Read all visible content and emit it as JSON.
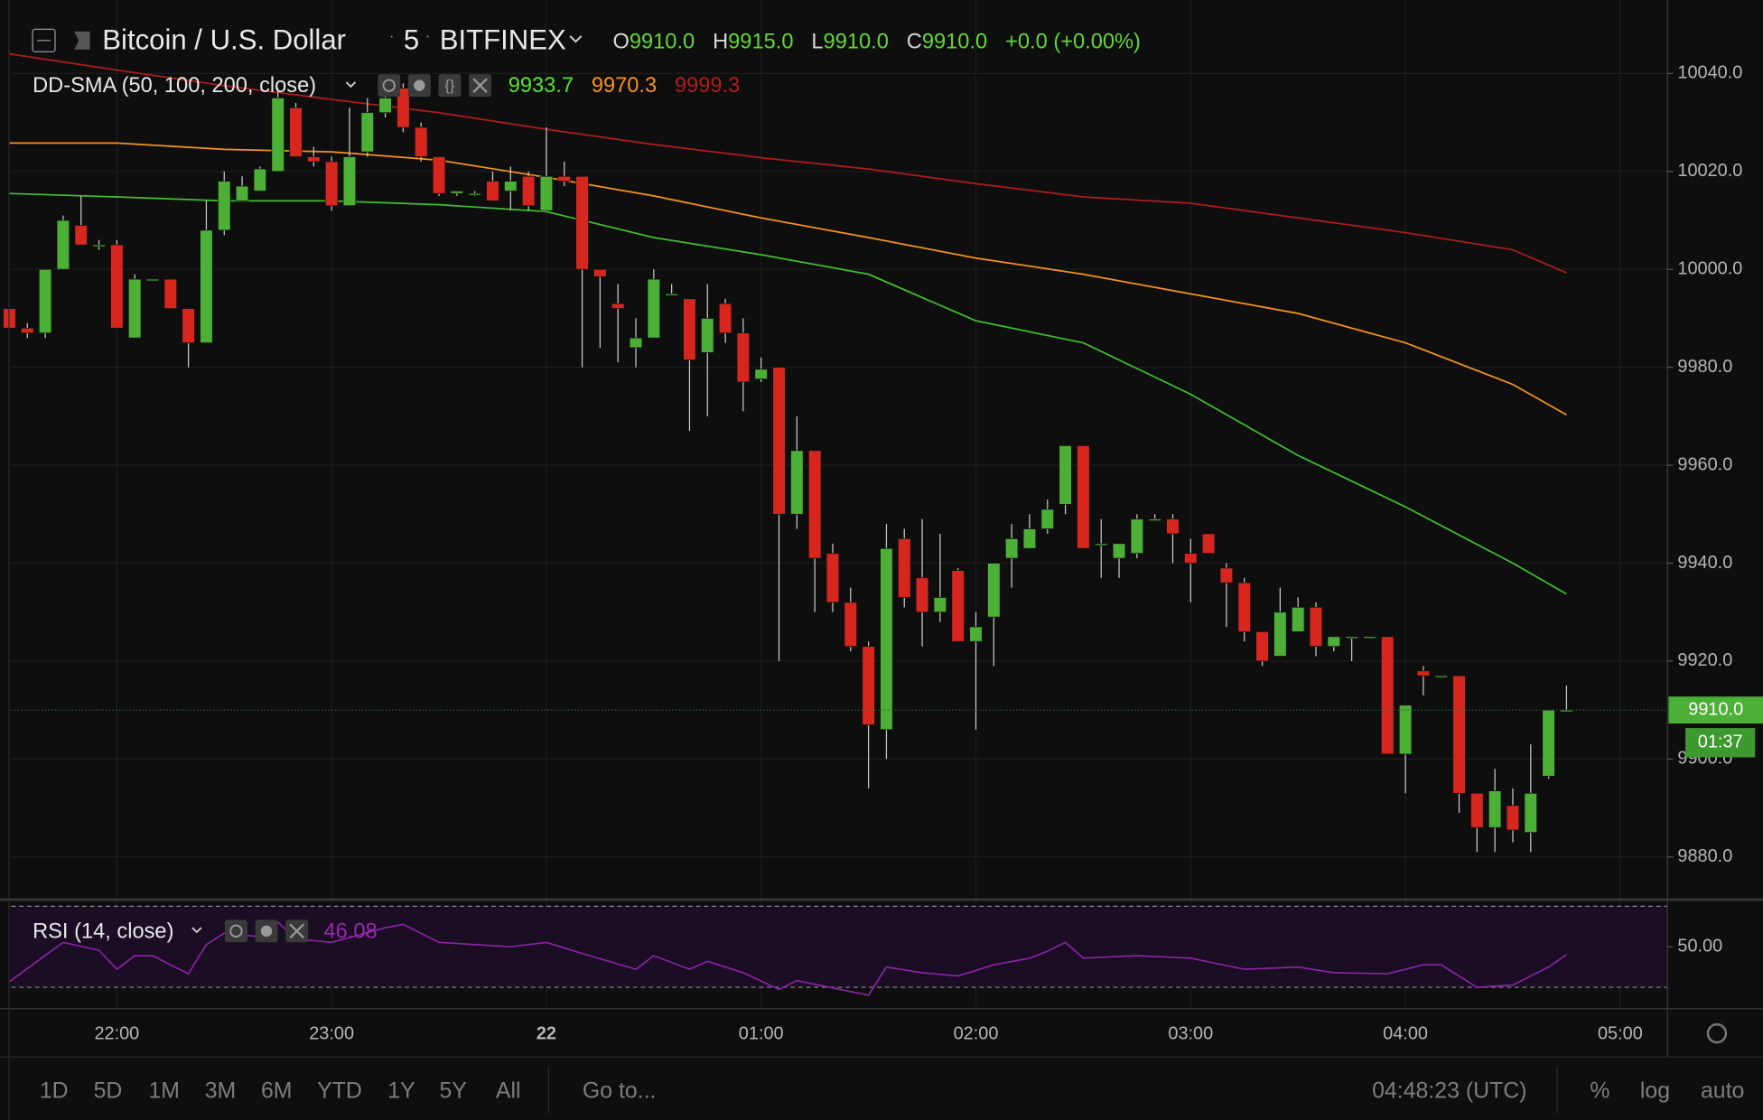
{
  "header": {
    "symbol": "Bitcoin / U.S. Dollar",
    "interval": "5",
    "exchange": "BITFINEX",
    "ohlc": [
      {
        "key": "O",
        "value": "9910.0"
      },
      {
        "key": "H",
        "value": "9915.0"
      },
      {
        "key": "L",
        "value": "9910.0"
      },
      {
        "key": "C",
        "value": "9910.0"
      }
    ],
    "change": "+0.0 (+0.00%)",
    "indicator": "DD-SMA (50, 100, 200, close)",
    "indicator_values": [
      9933.7,
      9970.3,
      9999.3
    ]
  },
  "toolbar": {
    "ranges": [
      "1D",
      "5D",
      "1M",
      "3M",
      "6M",
      "YTD",
      "1Y",
      "5Y",
      "All"
    ],
    "goto": "Go to...",
    "clock": "04:48:23 (UTC)",
    "options": [
      "%",
      "log",
      "auto"
    ]
  },
  "chart_data": [
    {
      "type": "candlestick",
      "up_color": "#4caf36",
      "down_color": "#d7261e",
      "x": [
        -30,
        -25,
        -20,
        -15,
        -10,
        -5,
        0,
        5,
        10,
        15,
        20,
        25,
        30,
        35,
        40,
        45,
        50,
        55,
        60,
        65,
        70,
        75,
        80,
        85,
        90,
        95,
        100,
        105,
        110,
        115,
        120,
        125,
        130,
        135,
        140,
        145,
        150,
        155,
        160,
        165,
        170,
        175,
        180,
        185,
        190,
        195,
        200,
        205,
        210,
        215,
        220,
        225,
        230,
        235,
        240,
        245,
        250,
        255,
        260,
        265,
        270,
        275,
        280,
        285,
        290,
        295,
        300,
        305,
        310,
        315,
        320,
        325,
        330,
        335,
        340,
        345,
        350,
        355,
        360,
        365,
        370,
        375,
        380,
        385,
        390,
        395,
        400,
        405
      ],
      "open": [
        9992,
        9988,
        9987,
        10000,
        10009,
        10005,
        10005,
        9986,
        9998,
        9998,
        9992,
        9985,
        10008,
        10014,
        10016,
        10020,
        10033,
        10023,
        10022,
        10013,
        10024,
        10032,
        10037,
        10029,
        10023,
        10015.5,
        10015.5,
        10018,
        10016,
        10019,
        10012,
        10019,
        10019,
        10000,
        9993,
        9984,
        9986,
        9995,
        9994,
        9983,
        9993,
        9987,
        9977.6,
        9980,
        9950,
        9963,
        9942,
        9932,
        9923,
        9906,
        9945,
        9937,
        9930,
        9938.5,
        9924,
        9929,
        9941,
        9943,
        9947,
        9952,
        9964,
        9944,
        9941,
        9942,
        9949,
        9949,
        9942,
        9946,
        9939,
        9936,
        9926,
        9921,
        9926,
        9931,
        9923,
        9925,
        9925,
        9925,
        9901,
        9918,
        9917,
        9917,
        9893,
        9886,
        9890.5,
        9885,
        9896.5,
        9910
      ],
      "high": [
        9992,
        9989,
        10000,
        10011,
        10015,
        10006,
        10006,
        9999,
        9998,
        9998,
        9992,
        10014,
        10020,
        10019,
        10021,
        10037,
        10034,
        10025,
        10023,
        10033,
        10035,
        10037,
        10038,
        10030,
        10023,
        10016,
        10016,
        10020,
        10021,
        10020,
        10029,
        10022,
        10019,
        10000,
        9997,
        9990,
        10000,
        9997,
        9994,
        9997,
        9994,
        9990,
        9982,
        9980,
        9970,
        9963,
        9944,
        9935,
        9924,
        9948,
        9947,
        9949,
        9946,
        9939,
        9930,
        9940,
        9948,
        9950,
        9953,
        9964,
        9964,
        9949,
        9944,
        9950,
        9950,
        9950,
        9945,
        9946,
        9940,
        9937,
        9926,
        9935,
        9933,
        9932,
        9925,
        9925,
        9925,
        9925,
        9911,
        9919,
        9917,
        9917,
        9893,
        9898,
        9894,
        9903,
        9910,
        9915
      ],
      "low": [
        9988,
        9986,
        9986,
        10000,
        10005,
        10004,
        9988,
        9986,
        9998,
        9992,
        9980,
        9985,
        10007,
        10014,
        10016,
        10020,
        10023,
        10021,
        10012,
        10013,
        10023,
        10031,
        10028,
        10022,
        10015,
        10015,
        10015,
        10014,
        10012,
        10012,
        10012,
        10017,
        9980,
        9984,
        9981,
        9980,
        9986,
        9995,
        9967,
        9970,
        9985,
        9971,
        9977,
        9920,
        9947,
        9930,
        9930,
        9922,
        9894,
        9900,
        9931,
        9923,
        9928,
        9924,
        9906,
        9919,
        9935,
        9943,
        9946,
        9950,
        9943,
        9937,
        9937,
        9941,
        9949,
        9940,
        9932,
        9942,
        9927,
        9924,
        9919,
        9921,
        9926,
        9921,
        9922,
        9920,
        9925,
        9901,
        9893,
        9913,
        9917,
        9889,
        9881,
        9881,
        9883,
        9881,
        9896,
        9910
      ],
      "close": [
        9988,
        9987,
        10000,
        10010,
        10005,
        10005,
        9988,
        9998,
        9998,
        9992,
        9985,
        10008,
        10018,
        10017,
        10020.5,
        10035,
        10023,
        10022,
        10013,
        10023,
        10032,
        10035,
        10029,
        10023,
        10015.5,
        10016,
        10015.5,
        10014,
        10018,
        10013,
        10019,
        10018,
        10000,
        9998.5,
        9992,
        9986,
        9998,
        9995,
        9981.5,
        9990,
        9987,
        9977,
        9979.6,
        9950,
        9963,
        9941,
        9932,
        9923,
        9907,
        9943,
        9933,
        9930,
        9933,
        9924,
        9927,
        9940,
        9945,
        9947,
        9951,
        9964,
        9943,
        9944,
        9944,
        9949,
        9949,
        9946,
        9940,
        9942,
        9936,
        9926,
        9920,
        9930,
        9931,
        9923,
        9925,
        9925,
        9925,
        9901,
        9911,
        9917,
        9917,
        9893,
        9886,
        9893.5,
        9885.5,
        9893,
        9910,
        9910
      ],
      "lines": {
        "x": [
          -30,
          0,
          30,
          60,
          90,
          120,
          150,
          180,
          210,
          240,
          270,
          300,
          330,
          360,
          390,
          405
        ],
        "series": [
          {
            "color": "#3fbf2f",
            "values": [
              10015.5,
              10014.8,
              10014,
              10014,
              10013.2,
              10011.8,
              10006.5,
              10003,
              9999,
              9989.5,
              9985,
              9974.5,
              9962,
              9951.5,
              9940,
              9933.7
            ]
          },
          {
            "color": "#f7931a",
            "values": [
              10025.8,
              10025.8,
              10024.5,
              10024,
              10022.3,
              10018.8,
              10015,
              10010.5,
              10006.5,
              10002.3,
              9999,
              9995,
              9991,
              9985,
              9976.5,
              9970.3
            ]
          },
          {
            "color": "#b01c1c",
            "values": [
              10044,
              10040.7,
              10037.5,
              10034.7,
              10032,
              10028.6,
              10025.5,
              10022.8,
              10020.5,
              10017.5,
              10014.8,
              10013.5,
              10010.5,
              10007.5,
              10004,
              9999.3
            ]
          }
        ]
      },
      "xlim": [
        -29.5,
        433.2
      ],
      "xticks": [
        {
          "value": 0,
          "label": "22:00"
        },
        {
          "value": 60,
          "label": "23:00"
        },
        {
          "value": 120,
          "label": "22"
        },
        {
          "value": 180,
          "label": "01:00"
        },
        {
          "value": 240,
          "label": "02:00"
        },
        {
          "value": 300,
          "label": "03:00"
        },
        {
          "value": 360,
          "label": "04:00"
        },
        {
          "value": 420,
          "label": "05:00"
        }
      ],
      "ylim": [
        9871.3,
        10055
      ],
      "yticks": [
        {
          "value": 9880,
          "label": "9880.0"
        },
        {
          "value": 9900,
          "label": "9900.0"
        },
        {
          "value": 9920,
          "label": "9920.0"
        },
        {
          "value": 9940,
          "label": "9940.0"
        },
        {
          "value": 9960,
          "label": "9960.0"
        },
        {
          "value": 9980,
          "label": "9980.0"
        },
        {
          "value": 10000,
          "label": "10000.0"
        },
        {
          "value": 10020,
          "label": "10020.0"
        },
        {
          "value": 10040,
          "label": "10040.0"
        }
      ],
      "grid": true,
      "last_price": {
        "value": 9910,
        "label": "9910.0"
      },
      "countdown": "01:37"
    },
    {
      "type": "line",
      "title": "RSI (14, close)",
      "color": "#8e24aa",
      "x": [
        -30,
        -15,
        -5,
        0,
        5,
        10,
        15,
        20,
        25,
        30,
        40,
        45,
        50,
        60,
        75,
        80,
        90,
        110,
        120,
        130,
        145,
        150,
        160,
        165,
        175,
        185,
        190,
        210,
        215,
        225,
        235,
        245,
        255,
        260,
        265,
        270,
        285,
        300,
        315,
        330,
        340,
        355,
        365,
        370,
        380,
        390,
        400,
        405
      ],
      "values": [
        32.8,
        52.2,
        48.3,
        38.9,
        45.6,
        45.6,
        41.1,
        36.7,
        51.1,
        56.7,
        55,
        62.2,
        53.9,
        52.2,
        59.4,
        61.1,
        52.2,
        50,
        52.2,
        46.7,
        38.9,
        45.6,
        38.9,
        42.8,
        37.2,
        28.9,
        33.3,
        26.1,
        40,
        37.2,
        35.6,
        41.1,
        44.4,
        47.8,
        52.2,
        44.4,
        45.6,
        44.4,
        38.9,
        40,
        37.2,
        36.7,
        41.1,
        41.1,
        30,
        31.1,
        40,
        46.08
      ],
      "ylim": [
        20,
        70
      ],
      "yticks": [
        {
          "value": 50,
          "label": "50.00"
        }
      ],
      "bands": [
        30,
        70
      ]
    }
  ]
}
